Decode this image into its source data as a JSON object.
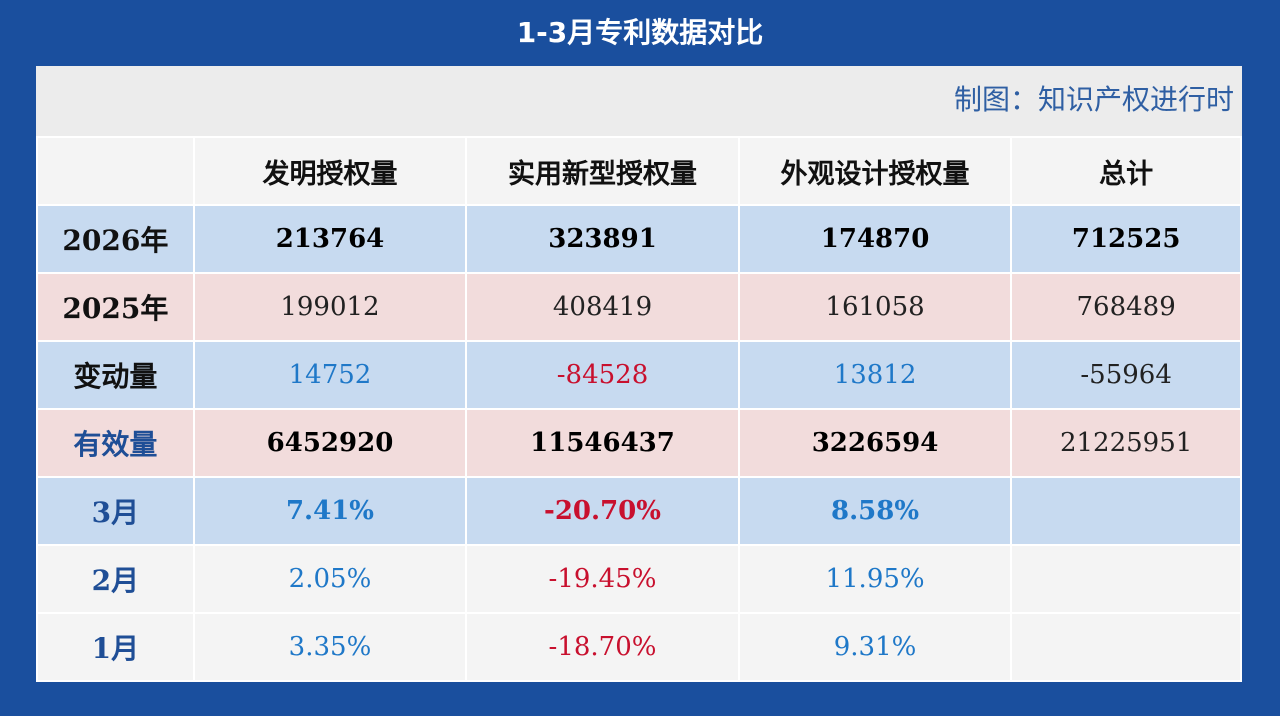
{
  "title": "1-3月专利数据对比",
  "credit": "制图：知识产权进行时",
  "chart_data": {
    "type": "table",
    "title": "1-3月专利数据对比",
    "columns": [
      "",
      "发明授权量",
      "实用新型授权量",
      "外观设计授权量",
      "总计"
    ],
    "rows": [
      {
        "label": "2026年",
        "cells": [
          "213764",
          "323891",
          "174870",
          "712525"
        ]
      },
      {
        "label": "2025年",
        "cells": [
          "199012",
          "408419",
          "161058",
          "768489"
        ]
      },
      {
        "label": "变动量",
        "cells": [
          "14752",
          "-84528",
          "13812",
          "-55964"
        ]
      },
      {
        "label": "有效量",
        "cells": [
          "6452920",
          "11546437",
          "3226594",
          "21225951"
        ]
      },
      {
        "label": "3月",
        "cells": [
          "7.41%",
          "-20.70%",
          "8.58%",
          ""
        ]
      },
      {
        "label": "2月",
        "cells": [
          "2.05%",
          "-19.45%",
          "11.95%",
          ""
        ]
      },
      {
        "label": "1月",
        "cells": [
          "3.35%",
          "-18.70%",
          "9.31%",
          ""
        ]
      }
    ]
  },
  "colors": {
    "frame": "#1a4f9e",
    "row_blue": "#c7daf0",
    "row_pink": "#f2dcdc",
    "row_gray": "#f4f4f4",
    "positive": "#1f78c8",
    "negative": "#c8102e",
    "label_blue": "#1f4e96"
  }
}
